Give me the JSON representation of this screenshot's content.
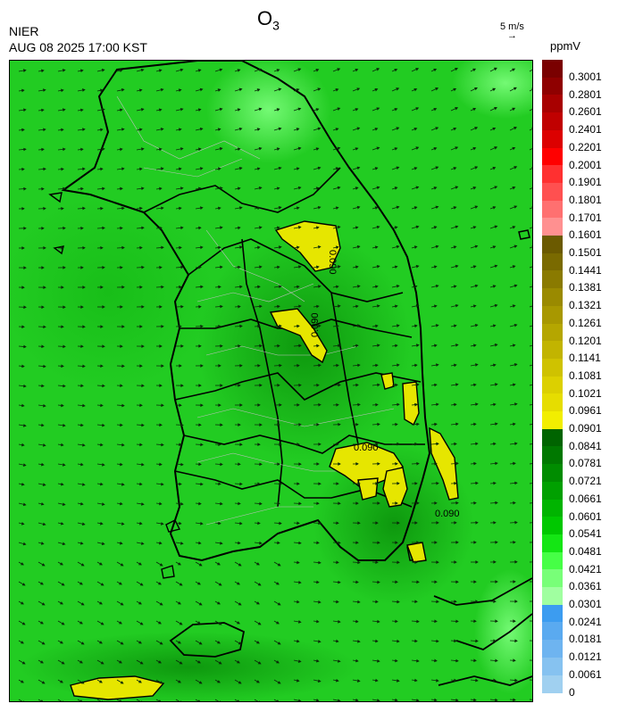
{
  "header": {
    "agency": "NIER",
    "timestamp": "AUG 08 2025 17:00 KST",
    "title_main": "O",
    "title_sub": "3",
    "wind_ref_label": "5 m/s",
    "wind_ref_arrow": "→",
    "unit": "ppmV"
  },
  "map": {
    "background_color": "#22cc22",
    "contour_level": "0.090",
    "contour_labels": [
      "0.090",
      "0.090",
      "0.090",
      "0.090"
    ],
    "exceed_color": "#e6e600"
  },
  "legend": {
    "bins": [
      {
        "label": "0.3001",
        "color": "#7a0000"
      },
      {
        "label": "0.2801",
        "color": "#8f0000"
      },
      {
        "label": "0.2601",
        "color": "#a80000"
      },
      {
        "label": "0.2401",
        "color": "#c00000"
      },
      {
        "label": "0.2201",
        "color": "#dc0000"
      },
      {
        "label": "0.2001",
        "color": "#ff0000"
      },
      {
        "label": "0.1901",
        "color": "#ff3030"
      },
      {
        "label": "0.1801",
        "color": "#ff5050"
      },
      {
        "label": "0.1701",
        "color": "#ff7070"
      },
      {
        "label": "0.1601",
        "color": "#ff9090"
      },
      {
        "label": "0.1501",
        "color": "#6b5a00"
      },
      {
        "label": "0.1441",
        "color": "#7a6a00"
      },
      {
        "label": "0.1381",
        "color": "#8a7a00"
      },
      {
        "label": "0.1321",
        "color": "#9a8a00"
      },
      {
        "label": "0.1261",
        "color": "#a89800"
      },
      {
        "label": "0.1201",
        "color": "#b5a600"
      },
      {
        "label": "0.1141",
        "color": "#c2b400"
      },
      {
        "label": "0.1081",
        "color": "#cfc200"
      },
      {
        "label": "0.1021",
        "color": "#dcd000"
      },
      {
        "label": "0.0961",
        "color": "#e6dd00"
      },
      {
        "label": "0.0901",
        "color": "#f2ee00"
      },
      {
        "label": "0.0841",
        "color": "#006400"
      },
      {
        "label": "0.0781",
        "color": "#007800"
      },
      {
        "label": "0.0721",
        "color": "#008c00"
      },
      {
        "label": "0.0661",
        "color": "#00a000"
      },
      {
        "label": "0.0601",
        "color": "#00b400"
      },
      {
        "label": "0.0541",
        "color": "#00c800"
      },
      {
        "label": "0.0481",
        "color": "#14e614"
      },
      {
        "label": "0.0421",
        "color": "#46ff46"
      },
      {
        "label": "0.0361",
        "color": "#78ff78"
      },
      {
        "label": "0.0301",
        "color": "#a0ffa0"
      },
      {
        "label": "0.0241",
        "color": "#3c9cf0"
      },
      {
        "label": "0.0181",
        "color": "#5aaaf0"
      },
      {
        "label": "0.0121",
        "color": "#6eb4f0"
      },
      {
        "label": "0.0061",
        "color": "#86c2f0"
      },
      {
        "label": "0",
        "color": "#a0d0f0"
      }
    ]
  }
}
